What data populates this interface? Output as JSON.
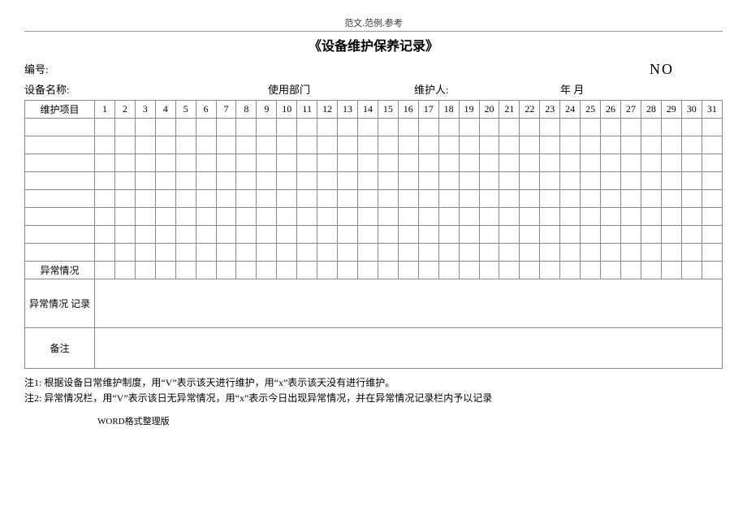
{
  "header_small": "范文.范例.参考",
  "title": "《设备维护保养记录》",
  "line1": {
    "label_number": "编号:",
    "no_text": "NO"
  },
  "line2": {
    "device_name_label": "设备名称:",
    "dept_label": "使用部门",
    "maintainer_label": "维护人:",
    "date_label": "年 月"
  },
  "table": {
    "row_header": "维护项目",
    "days": [
      "1",
      "2",
      "3",
      "4",
      "5",
      "6",
      "7",
      "8",
      "9",
      "10",
      "11",
      "12",
      "13",
      "14",
      "15",
      "16",
      "17",
      "18",
      "19",
      "20",
      "21",
      "22",
      "23",
      "24",
      "25",
      "26",
      "27",
      "28",
      "29",
      "30",
      "31"
    ],
    "blank_rows": 8,
    "exception_row": "异常情况",
    "exception_record": "异常情况 记录",
    "remark": "备注"
  },
  "notes": {
    "n1": "注1:  根据设备日常维护制度，用“V”表示该天进行维护，用“x”表示该天没有进行维护。",
    "n2": "注2:  异常情况栏，用“V”表示该日无异常情况，用“x”表示今日出现异常情况，并在异常情况记录栏内予以记录"
  },
  "footer": "WORD格式整理版",
  "colors": {
    "border": "#888888",
    "text": "#000000",
    "bg": "#ffffff"
  }
}
